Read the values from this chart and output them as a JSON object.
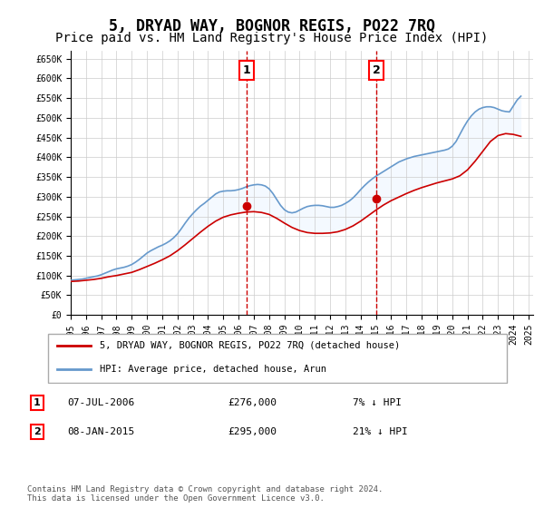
{
  "title": "5, DRYAD WAY, BOGNOR REGIS, PO22 7RQ",
  "subtitle": "Price paid vs. HM Land Registry's House Price Index (HPI)",
  "title_fontsize": 12,
  "subtitle_fontsize": 10,
  "ylabel": "",
  "xlabel": "",
  "ylim": [
    0,
    670000
  ],
  "yticks": [
    0,
    50000,
    100000,
    150000,
    200000,
    250000,
    300000,
    350000,
    400000,
    450000,
    500000,
    550000,
    600000,
    650000
  ],
  "ytick_labels": [
    "£0",
    "£50K",
    "£100K",
    "£150K",
    "£200K",
    "£250K",
    "£300K",
    "£350K",
    "£400K",
    "£450K",
    "£500K",
    "£550K",
    "£600K",
    "£650K"
  ],
  "background_color": "#ffffff",
  "plot_bg_color": "#ffffff",
  "grid_color": "#cccccc",
  "hpi_line_color": "#6699cc",
  "price_line_color": "#cc0000",
  "fill_color": "#ddeeff",
  "vline_color": "#cc0000",
  "marker1_date": 2006.52,
  "marker2_date": 2015.03,
  "marker1_price": 276000,
  "marker2_price": 295000,
  "marker1_label": "07-JUL-2006",
  "marker2_label": "08-JAN-2015",
  "marker1_pct": "7% ↓ HPI",
  "marker2_pct": "21% ↓ HPI",
  "legend_label_price": "5, DRYAD WAY, BOGNOR REGIS, PO22 7RQ (detached house)",
  "legend_label_hpi": "HPI: Average price, detached house, Arun",
  "footer": "Contains HM Land Registry data © Crown copyright and database right 2024.\nThis data is licensed under the Open Government Licence v3.0.",
  "hpi_years": [
    1995.0,
    1995.25,
    1995.5,
    1995.75,
    1996.0,
    1996.25,
    1996.5,
    1996.75,
    1997.0,
    1997.25,
    1997.5,
    1997.75,
    1998.0,
    1998.25,
    1998.5,
    1998.75,
    1999.0,
    1999.25,
    1999.5,
    1999.75,
    2000.0,
    2000.25,
    2000.5,
    2000.75,
    2001.0,
    2001.25,
    2001.5,
    2001.75,
    2002.0,
    2002.25,
    2002.5,
    2002.75,
    2003.0,
    2003.25,
    2003.5,
    2003.75,
    2004.0,
    2004.25,
    2004.5,
    2004.75,
    2005.0,
    2005.25,
    2005.5,
    2005.75,
    2006.0,
    2006.25,
    2006.5,
    2006.75,
    2007.0,
    2007.25,
    2007.5,
    2007.75,
    2008.0,
    2008.25,
    2008.5,
    2008.75,
    2009.0,
    2009.25,
    2009.5,
    2009.75,
    2010.0,
    2010.25,
    2010.5,
    2010.75,
    2011.0,
    2011.25,
    2011.5,
    2011.75,
    2012.0,
    2012.25,
    2012.5,
    2012.75,
    2013.0,
    2013.25,
    2013.5,
    2013.75,
    2014.0,
    2014.25,
    2014.5,
    2014.75,
    2015.0,
    2015.25,
    2015.5,
    2015.75,
    2016.0,
    2016.25,
    2016.5,
    2016.75,
    2017.0,
    2017.25,
    2017.5,
    2017.75,
    2018.0,
    2018.25,
    2018.5,
    2018.75,
    2019.0,
    2019.25,
    2019.5,
    2019.75,
    2020.0,
    2020.25,
    2020.5,
    2020.75,
    2021.0,
    2021.25,
    2021.5,
    2021.75,
    2022.0,
    2022.25,
    2022.5,
    2022.75,
    2023.0,
    2023.25,
    2023.5,
    2023.75,
    2024.0,
    2024.25,
    2024.5
  ],
  "hpi_values": [
    88000,
    89000,
    90000,
    91000,
    93000,
    95000,
    97000,
    99000,
    102000,
    106000,
    110000,
    114000,
    117000,
    119000,
    121000,
    124000,
    128000,
    134000,
    141000,
    149000,
    157000,
    163000,
    168000,
    173000,
    177000,
    182000,
    188000,
    196000,
    206000,
    219000,
    233000,
    246000,
    257000,
    267000,
    276000,
    283000,
    291000,
    299000,
    307000,
    312000,
    314000,
    315000,
    315000,
    316000,
    318000,
    321000,
    325000,
    328000,
    330000,
    331000,
    330000,
    327000,
    320000,
    308000,
    293000,
    278000,
    267000,
    261000,
    259000,
    261000,
    266000,
    271000,
    275000,
    277000,
    278000,
    278000,
    277000,
    275000,
    273000,
    273000,
    275000,
    278000,
    283000,
    289000,
    297000,
    307000,
    318000,
    328000,
    337000,
    345000,
    352000,
    358000,
    364000,
    370000,
    376000,
    382000,
    388000,
    392000,
    396000,
    399000,
    402000,
    404000,
    406000,
    408000,
    410000,
    412000,
    414000,
    416000,
    418000,
    421000,
    428000,
    440000,
    458000,
    476000,
    492000,
    505000,
    515000,
    522000,
    526000,
    528000,
    528000,
    526000,
    522000,
    518000,
    516000,
    515000,
    530000,
    545000,
    555000
  ],
  "price_years": [
    1995.0,
    1995.5,
    1996.0,
    1996.5,
    1997.0,
    1997.5,
    1998.0,
    1998.5,
    1999.0,
    1999.5,
    2000.0,
    2000.5,
    2001.0,
    2001.5,
    2002.0,
    2002.5,
    2003.0,
    2003.5,
    2004.0,
    2004.5,
    2005.0,
    2005.5,
    2006.0,
    2006.5,
    2007.0,
    2007.5,
    2008.0,
    2008.5,
    2009.0,
    2009.5,
    2010.0,
    2010.5,
    2011.0,
    2011.5,
    2012.0,
    2012.5,
    2013.0,
    2013.5,
    2014.0,
    2014.5,
    2015.0,
    2015.5,
    2016.0,
    2016.5,
    2017.0,
    2017.5,
    2018.0,
    2018.5,
    2019.0,
    2019.5,
    2020.0,
    2020.5,
    2021.0,
    2021.5,
    2022.0,
    2022.5,
    2023.0,
    2023.5,
    2024.0,
    2024.5
  ],
  "price_values": [
    85000,
    86000,
    88000,
    90000,
    93000,
    97000,
    100000,
    104000,
    108000,
    115000,
    123000,
    131000,
    140000,
    150000,
    163000,
    178000,
    194000,
    210000,
    225000,
    238000,
    248000,
    254000,
    258000,
    261000,
    262000,
    260000,
    255000,
    245000,
    233000,
    222000,
    214000,
    209000,
    207000,
    207000,
    208000,
    211000,
    217000,
    226000,
    238000,
    252000,
    266000,
    279000,
    290000,
    299000,
    308000,
    316000,
    323000,
    329000,
    335000,
    340000,
    345000,
    353000,
    368000,
    390000,
    415000,
    440000,
    455000,
    460000,
    458000,
    453000
  ],
  "xlim_left": 1995.0,
  "xlim_right": 2025.3,
  "xticks": [
    1995,
    1996,
    1997,
    1998,
    1999,
    2000,
    2001,
    2002,
    2003,
    2004,
    2005,
    2006,
    2007,
    2008,
    2009,
    2010,
    2011,
    2012,
    2013,
    2014,
    2015,
    2016,
    2017,
    2018,
    2019,
    2020,
    2021,
    2022,
    2023,
    2024,
    2025
  ]
}
